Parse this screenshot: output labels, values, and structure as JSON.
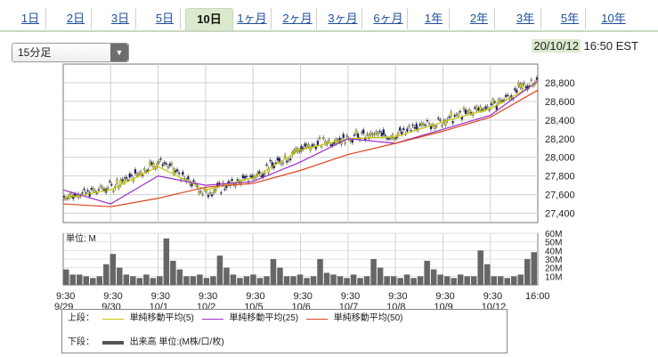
{
  "tabs": [
    {
      "label": "1日",
      "active": false
    },
    {
      "label": "2日",
      "active": false
    },
    {
      "label": "3日",
      "active": false
    },
    {
      "label": "5日",
      "active": false
    },
    {
      "label": "10日",
      "active": true
    },
    {
      "label": "1ヶ月",
      "active": false
    },
    {
      "label": "2ヶ月",
      "active": false
    },
    {
      "label": "3ヶ月",
      "active": false
    },
    {
      "label": "6ヶ月",
      "active": false
    },
    {
      "label": "1年",
      "active": false
    },
    {
      "label": "2年",
      "active": false
    },
    {
      "label": "3年",
      "active": false
    },
    {
      "label": "5年",
      "active": false
    },
    {
      "label": "10年",
      "active": false
    }
  ],
  "interval_select": {
    "value": "15分足"
  },
  "timestamp": {
    "date": "20/10/12",
    "time": " 16:50 EST"
  },
  "colors": {
    "ma5": "#c8c800",
    "ma25": "#9b2fc9",
    "ma50": "#d9451f",
    "up": "#e2e21a",
    "down": "#1a1a80",
    "volume": "#666666",
    "accent": "#dbe9cd"
  },
  "chart_data": [
    {
      "type": "line",
      "title": "",
      "y_ticks": [
        "28,800",
        "28,600",
        "28,400",
        "28,200",
        "28,000",
        "27,800",
        "27,600",
        "27,400"
      ],
      "ylim": [
        27300,
        29000
      ],
      "x": [
        0,
        1,
        2,
        3,
        4,
        5,
        6,
        7,
        8,
        9,
        10
      ],
      "series": [
        {
          "name": "price",
          "values": [
            27580,
            27680,
            27960,
            27620,
            27800,
            28100,
            28220,
            28250,
            28400,
            28550,
            28850
          ]
        },
        {
          "name": "ma5",
          "values": [
            27560,
            27650,
            27900,
            27650,
            27780,
            28080,
            28200,
            28220,
            28380,
            28520,
            28800
          ]
        },
        {
          "name": "ma25",
          "values": [
            27650,
            27500,
            27800,
            27700,
            27740,
            27950,
            28200,
            28150,
            28300,
            28450,
            28820
          ]
        },
        {
          "name": "ma50",
          "values": [
            27500,
            27470,
            27560,
            27680,
            27720,
            27860,
            28030,
            28150,
            28280,
            28430,
            28720
          ]
        }
      ]
    },
    {
      "type": "bar",
      "unit_label": "単位: M",
      "y_ticks": [
        "60M",
        "50M",
        "40M",
        "30M",
        "20M",
        "10M"
      ],
      "ylim": [
        0,
        60
      ],
      "values": [
        18,
        12,
        12,
        10,
        8,
        10,
        24,
        36,
        20,
        12,
        10,
        8,
        12,
        8,
        10,
        54,
        28,
        18,
        10,
        10,
        12,
        8,
        10,
        34,
        20,
        12,
        8,
        10,
        12,
        8,
        10,
        30,
        20,
        10,
        10,
        12,
        8,
        10,
        30,
        14,
        12,
        10,
        8,
        12,
        8,
        10,
        30,
        20,
        10,
        10,
        8,
        12,
        8,
        10,
        28,
        18,
        12,
        10,
        8,
        12,
        10,
        10,
        40,
        24,
        10,
        10,
        8,
        10,
        12,
        30,
        38
      ]
    }
  ],
  "x_axis": {
    "times": [
      "9:30",
      "9:30",
      "9:30",
      "9:30",
      "9:30",
      "9:30",
      "9:30",
      "9:30",
      "9:30",
      "9:30",
      "16:00"
    ],
    "dates": [
      "9/29",
      "9/30",
      "10/1",
      "10/2",
      "10/5",
      "10/6",
      "10/7",
      "10/8",
      "10/9",
      "10/12",
      ""
    ]
  },
  "legend": {
    "upper_label": "上段：",
    "items": [
      "単純移動平均(5)",
      "単純移動平均(25)",
      "単純移動平均(50)"
    ],
    "lower_label": "下段：",
    "volume_label": "出来高 単位:(M株/口/枚)"
  }
}
